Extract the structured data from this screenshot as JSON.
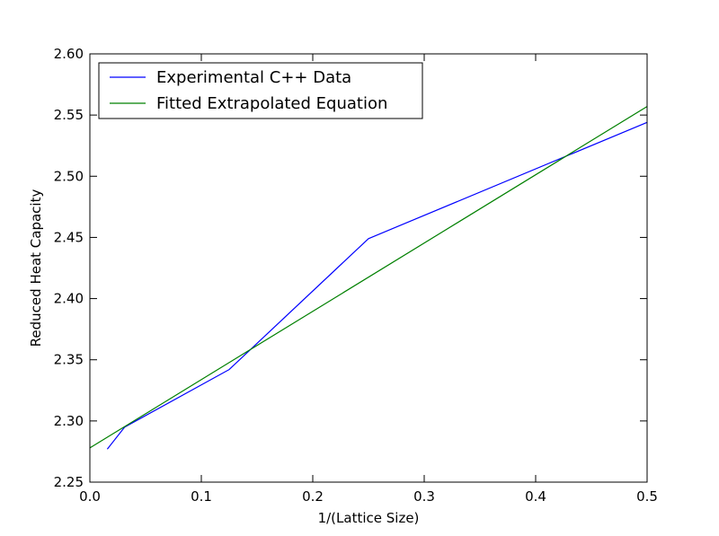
{
  "chart_data": {
    "type": "line",
    "title": "",
    "xlabel": "1/(Lattice Size)",
    "ylabel": "Reduced Heat Capacity",
    "xlim": [
      0.0,
      0.5
    ],
    "ylim": [
      2.25,
      2.6
    ],
    "x_ticks": [
      "0.0",
      "0.1",
      "0.2",
      "0.3",
      "0.4",
      "0.5"
    ],
    "y_ticks": [
      "2.25",
      "2.30",
      "2.35",
      "2.40",
      "2.45",
      "2.50",
      "2.55",
      "2.60"
    ],
    "grid": false,
    "legend_position": "upper-left",
    "series": [
      {
        "name": "Experimental C++ Data",
        "color": "#0000ff",
        "x": [
          0.015625,
          0.03125,
          0.125,
          0.25,
          0.5
        ],
        "y": [
          2.277,
          2.295,
          2.342,
          2.449,
          2.544
        ]
      },
      {
        "name": "Fitted Extrapolated Equation",
        "color": "#008000",
        "x": [
          0.0,
          0.5
        ],
        "y": [
          2.278,
          2.557
        ]
      }
    ]
  }
}
